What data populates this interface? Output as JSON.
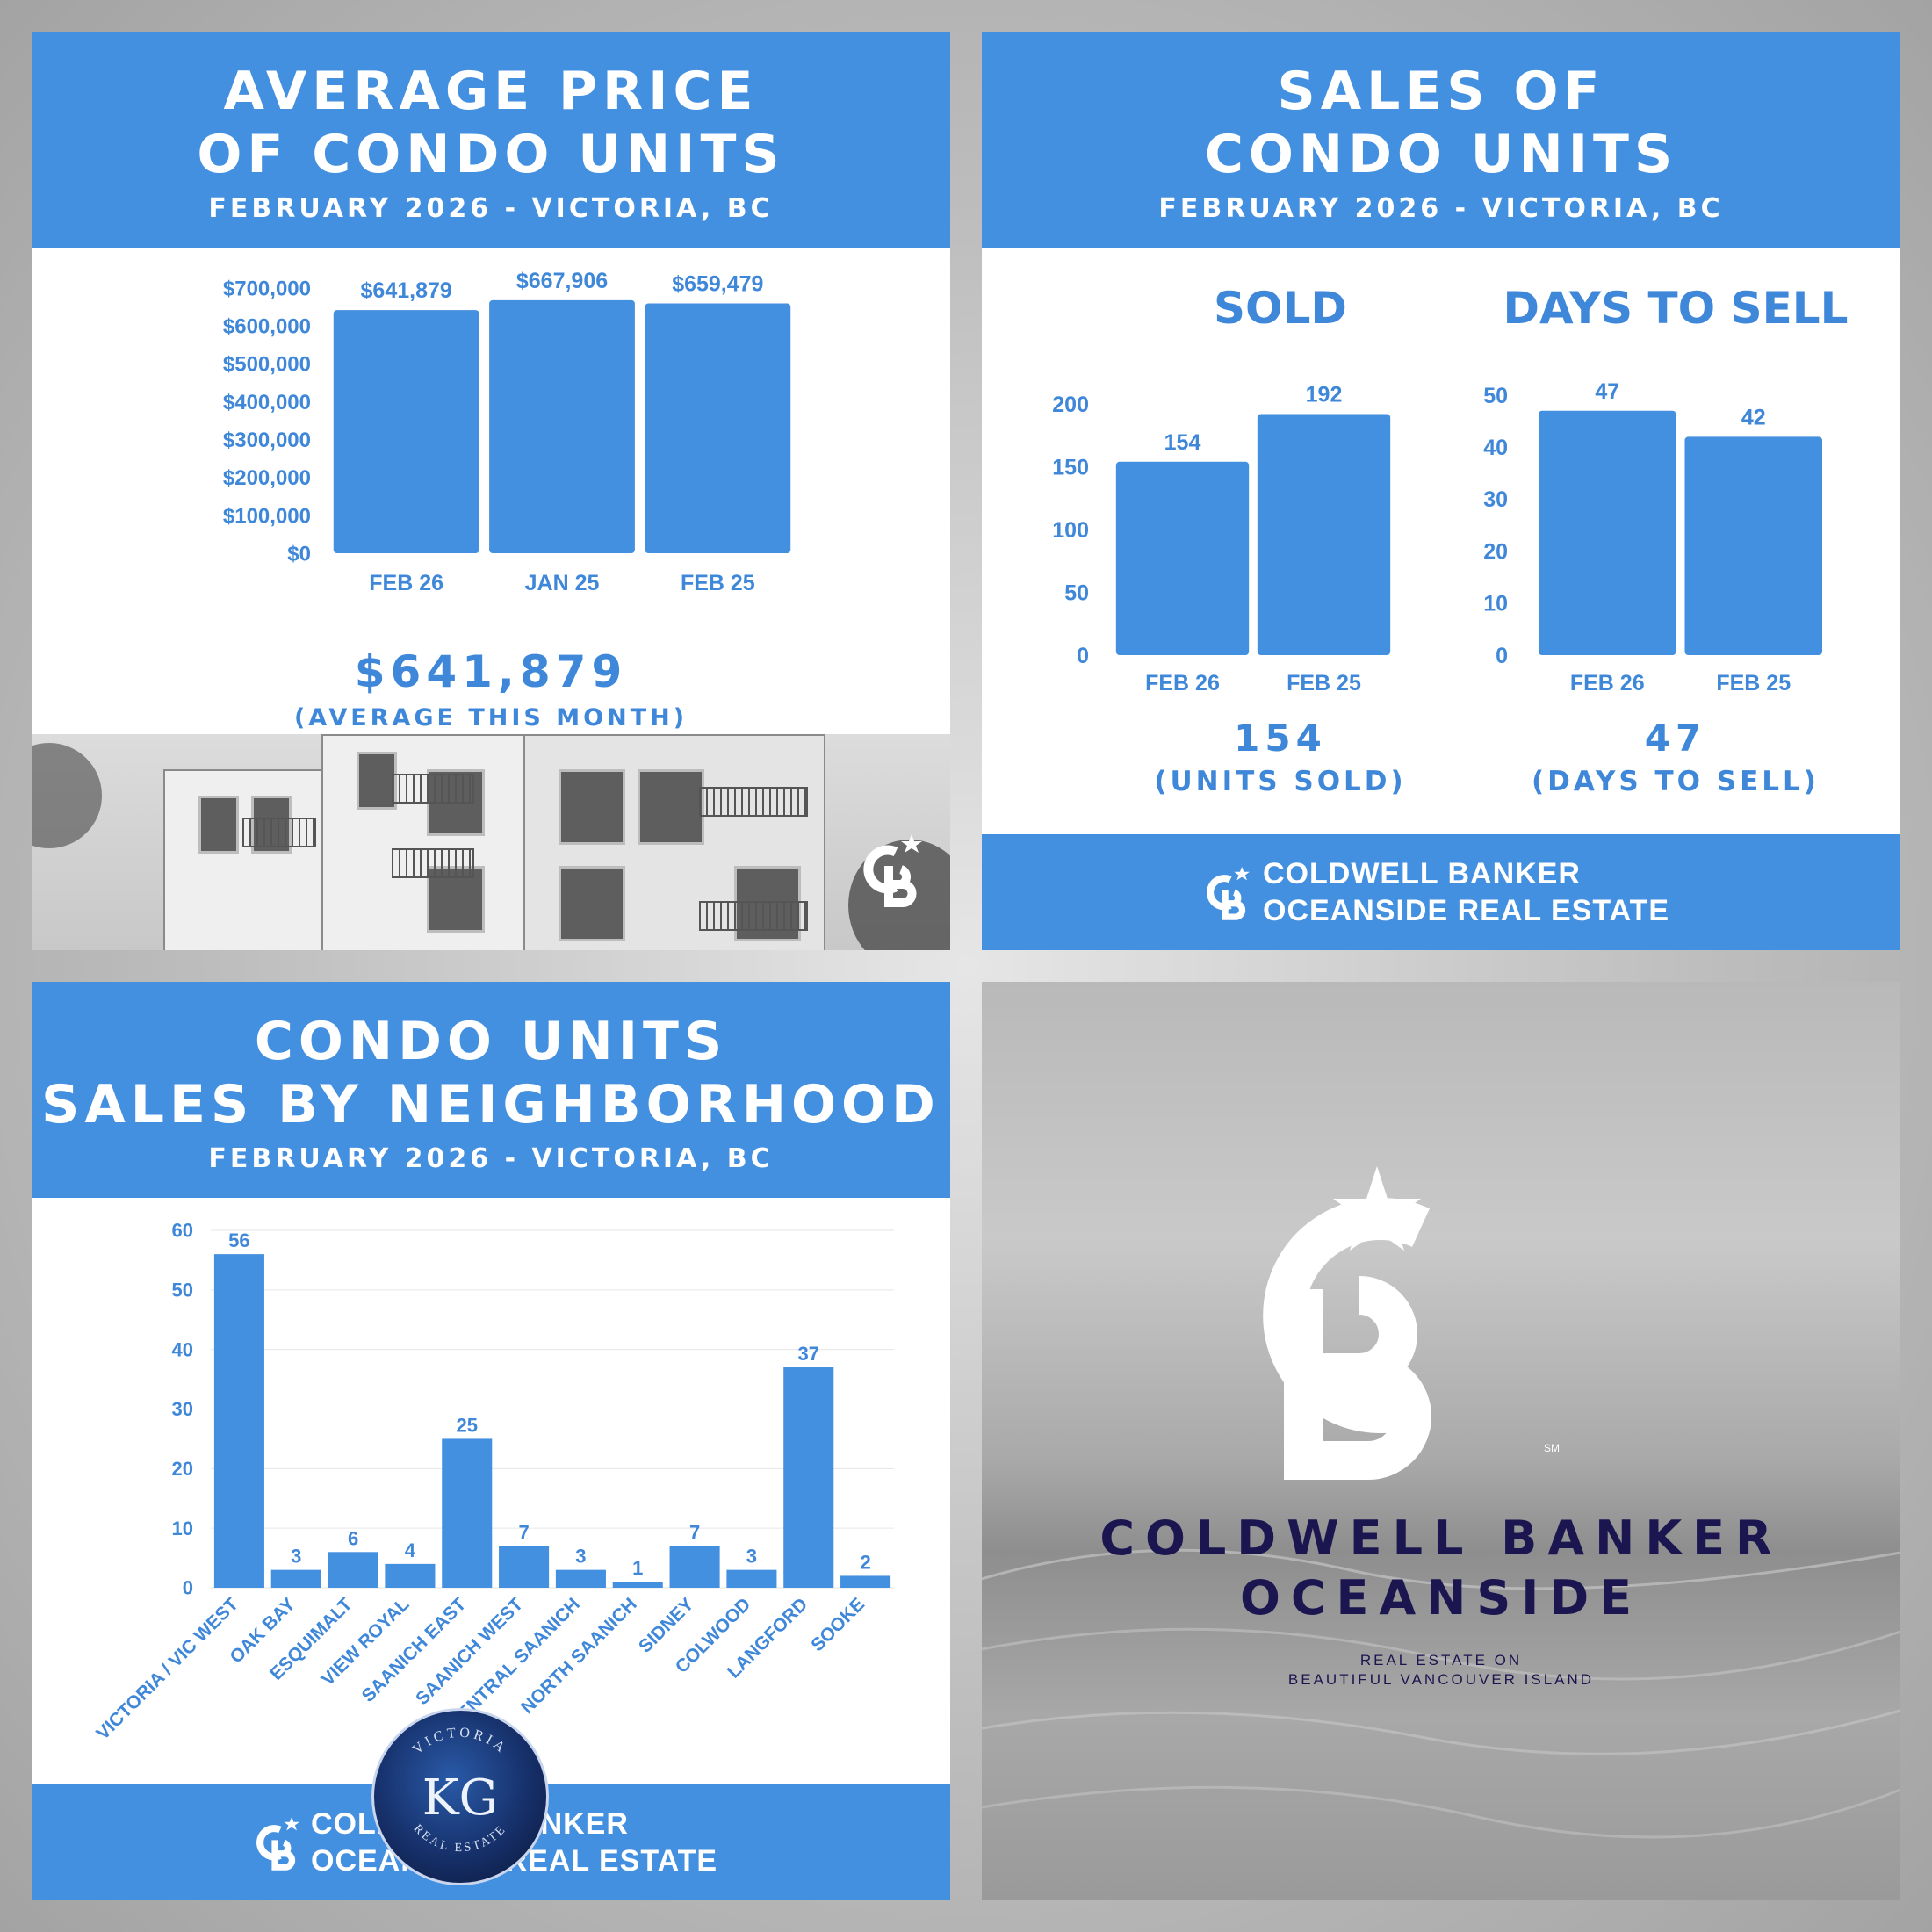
{
  "colors": {
    "accent": "#438fe0",
    "bar": "#438fe0",
    "label": "#3f87d9",
    "navy": "#1b1550"
  },
  "panel1": {
    "title_line1": "AVERAGE PRICE",
    "title_line2": "OF CONDO UNITS",
    "subtitle": "FEBRUARY 2026 - VICTORIA, BC",
    "big_value": "$641,879",
    "caption": "(AVERAGE THIS MONTH)",
    "watermark_logo": "cb-logo-icon"
  },
  "panel2": {
    "title_line1": "SALES OF",
    "title_line2": "CONDO UNITS",
    "subtitle": "FEBRUARY 2026 - VICTORIA, BC",
    "sold_heading": "SOLD",
    "days_heading": "DAYS TO SELL",
    "sold_value": "154",
    "sold_caption": "(UNITS SOLD)",
    "days_value": "47",
    "days_caption": "(DAYS TO SELL)",
    "footer_line1": "COLDWELL BANKER",
    "footer_line2": "OCEANSIDE REAL ESTATE"
  },
  "panel3": {
    "title_line1": "CONDO UNITS",
    "title_line2": "SALES BY NEIGHBORHOOD",
    "subtitle": "FEBRUARY 2026 - VICTORIA, BC",
    "footer_line1": "COLDWELL BANKER",
    "footer_line2": "OCEANSIDE REAL ESTATE"
  },
  "panel4": {
    "brand_line1": "COLDWELL BANKER",
    "brand_line2": "OCEANSIDE",
    "tag_line1": "REAL ESTATE ON",
    "tag_line2": "BEAUTIFUL VANCOUVER ISLAND",
    "sm": "SM",
    "badge_initials": "KG",
    "badge_top": "VICTORIA",
    "badge_bottom": "REAL ESTATE"
  },
  "chart_data": [
    {
      "id": "avg-price",
      "type": "bar",
      "categories": [
        "FEB 26",
        "JAN 25",
        "FEB 25"
      ],
      "values": [
        641879,
        667906,
        659479
      ],
      "data_labels": [
        "$641,879",
        "$667,906",
        "$659,479"
      ],
      "ylim": [
        0,
        700000
      ],
      "yticks": [
        0,
        100000,
        200000,
        300000,
        400000,
        500000,
        600000,
        700000
      ],
      "ytick_labels": [
        "$0",
        "$100,000",
        "$200,000",
        "$300,000",
        "$400,000",
        "$500,000",
        "$600,000",
        "$700,000"
      ],
      "grid": false
    },
    {
      "id": "sold",
      "type": "bar",
      "title": "SOLD",
      "categories": [
        "FEB 26",
        "FEB 25"
      ],
      "values": [
        154,
        192
      ],
      "ylim": [
        0,
        200
      ],
      "yticks": [
        0,
        50,
        100,
        150,
        200
      ],
      "grid": false
    },
    {
      "id": "days-to-sell",
      "type": "bar",
      "title": "DAYS TO SELL",
      "categories": [
        "FEB 26",
        "FEB 25"
      ],
      "values": [
        47,
        42
      ],
      "ylim": [
        0,
        50
      ],
      "yticks": [
        0,
        10,
        20,
        30,
        40,
        50
      ],
      "grid": false
    },
    {
      "id": "by-neighborhood",
      "type": "bar",
      "categories": [
        "VICTORIA / VIC WEST",
        "OAK BAY",
        "ESQUIMALT",
        "VIEW ROYAL",
        "SAANICH EAST",
        "SAANICH WEST",
        "CENTRAL SAANICH",
        "NORTH SAANICH",
        "SIDNEY",
        "COLWOOD",
        "LANGFORD",
        "SOOKE"
      ],
      "values": [
        56,
        3,
        6,
        4,
        25,
        7,
        3,
        1,
        7,
        3,
        37,
        2
      ],
      "ylim": [
        0,
        60
      ],
      "yticks": [
        0,
        10,
        20,
        30,
        40,
        50,
        60
      ],
      "grid": true
    }
  ]
}
